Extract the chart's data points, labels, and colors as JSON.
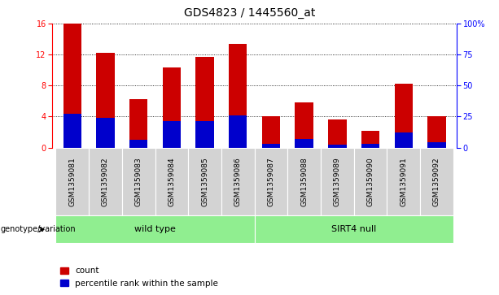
{
  "title": "GDS4823 / 1445560_at",
  "categories": [
    "GSM1359081",
    "GSM1359082",
    "GSM1359083",
    "GSM1359084",
    "GSM1359085",
    "GSM1359086",
    "GSM1359087",
    "GSM1359088",
    "GSM1359089",
    "GSM1359090",
    "GSM1359091",
    "GSM1359092"
  ],
  "count_values": [
    16,
    12.2,
    6.2,
    10.3,
    11.7,
    13.4,
    4.0,
    5.8,
    3.6,
    2.2,
    8.2,
    4.0
  ],
  "percentile_values": [
    27,
    24,
    6,
    21,
    21,
    26,
    3,
    7,
    2,
    3,
    12,
    4
  ],
  "group_labels": [
    "wild type",
    "SIRT4 null"
  ],
  "group_ranges": [
    [
      0,
      6
    ],
    [
      6,
      12
    ]
  ],
  "bar_color_red": "#cc0000",
  "bar_color_blue": "#0000cc",
  "left_ylim": [
    0,
    16
  ],
  "left_yticks": [
    0,
    4,
    8,
    12,
    16
  ],
  "right_ylim": [
    0,
    100
  ],
  "right_yticks": [
    0,
    25,
    50,
    75,
    100
  ],
  "right_yticklabels": [
    "0",
    "25",
    "50",
    "75",
    "100%"
  ],
  "grid_color": "black",
  "genotype_label": "genotype/variation",
  "legend_count": "count",
  "legend_percentile": "percentile rank within the sample",
  "bar_width": 0.55,
  "title_fontsize": 10,
  "tick_fontsize": 7,
  "label_fontsize": 8,
  "cat_fontsize": 6.5
}
